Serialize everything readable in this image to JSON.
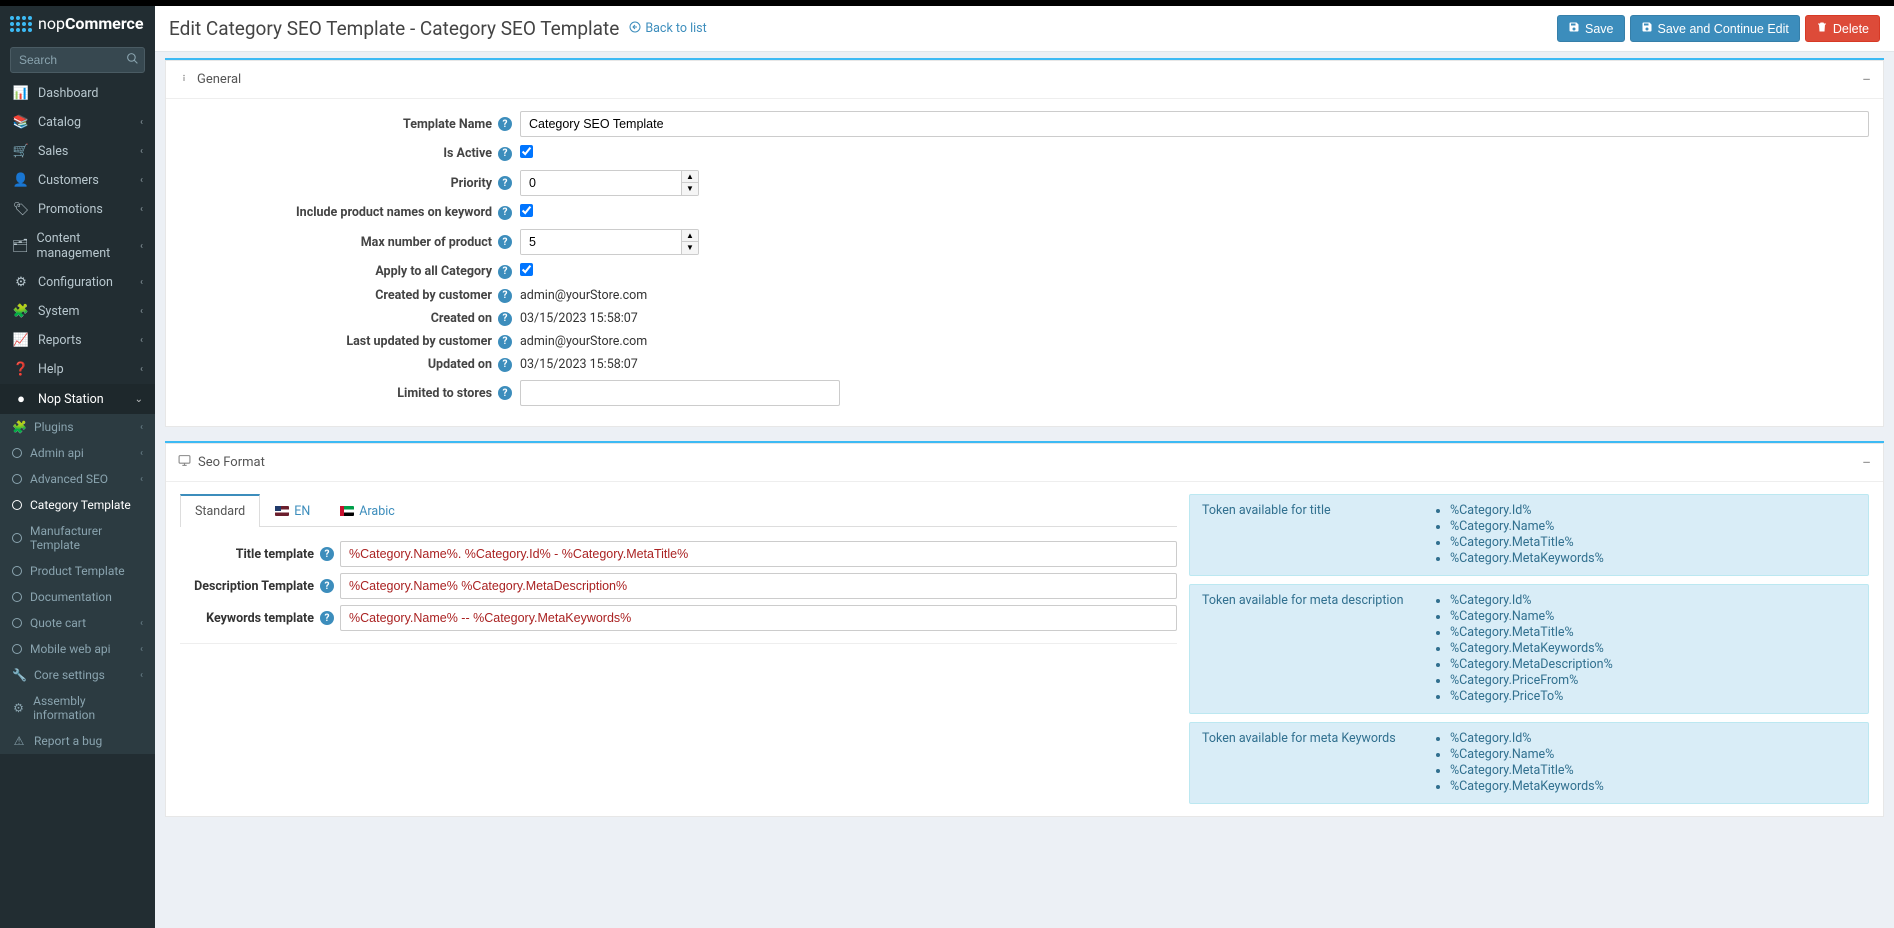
{
  "brand": {
    "nop": "nop",
    "commerce": "Commerce"
  },
  "search": {
    "placeholder": "Search"
  },
  "nav": {
    "items": [
      {
        "icon": "📊",
        "label": "Dashboard",
        "caret": false
      },
      {
        "icon": "📚",
        "label": "Catalog",
        "caret": true
      },
      {
        "icon": "🛒",
        "label": "Sales",
        "caret": true
      },
      {
        "icon": "👤",
        "label": "Customers",
        "caret": true
      },
      {
        "icon": "🏷",
        "label": "Promotions",
        "caret": true
      },
      {
        "icon": "🗂",
        "label": "Content management",
        "caret": true
      },
      {
        "icon": "⚙",
        "label": "Configuration",
        "caret": true
      },
      {
        "icon": "🧩",
        "label": "System",
        "caret": true
      },
      {
        "icon": "📈",
        "label": "Reports",
        "caret": true
      },
      {
        "icon": "❓",
        "label": "Help",
        "caret": true
      }
    ],
    "station": {
      "icon": "●",
      "label": "Nop Station"
    },
    "sub": [
      {
        "label": "Plugins",
        "icon": "🧩",
        "caret": true
      },
      {
        "label": "Admin api",
        "caret": true
      },
      {
        "label": "Advanced SEO",
        "caret": true,
        "open": true
      },
      {
        "label": "Category Template",
        "active": true,
        "indent": true
      },
      {
        "label": "Manufacturer Template",
        "indent": true
      },
      {
        "label": "Product Template",
        "indent": true
      },
      {
        "label": "Documentation",
        "indent": true
      },
      {
        "label": "Quote cart",
        "caret": true
      },
      {
        "label": "Mobile web api",
        "caret": true
      },
      {
        "label": "Core settings",
        "icon": "🔧",
        "caret": true
      },
      {
        "label": "Assembly information",
        "icon": "⚙"
      },
      {
        "label": "Report a bug",
        "icon": "⚠"
      }
    ]
  },
  "header": {
    "title": "Edit Category SEO Template - Category SEO Template",
    "back": "Back to list",
    "save": "Save",
    "saveContinue": "Save and Continue Edit",
    "delete": "Delete"
  },
  "panel_general": {
    "title": "General"
  },
  "panel_seo": {
    "title": "Seo Format"
  },
  "form": {
    "templateName": {
      "label": "Template Name",
      "value": "Category SEO Template"
    },
    "isActive": {
      "label": "Is Active",
      "checked": true
    },
    "priority": {
      "label": "Priority",
      "value": "0"
    },
    "includeProductNames": {
      "label": "Include product names on keyword",
      "checked": true
    },
    "maxProduct": {
      "label": "Max number of product",
      "value": "5"
    },
    "applyAll": {
      "label": "Apply to all Category",
      "checked": true
    },
    "createdBy": {
      "label": "Created by customer",
      "value": "admin@yourStore.com"
    },
    "createdOn": {
      "label": "Created on",
      "value": "03/15/2023 15:58:07"
    },
    "updatedBy": {
      "label": "Last updated by customer",
      "value": "admin@yourStore.com"
    },
    "updatedOn": {
      "label": "Updated on",
      "value": "03/15/2023 15:58:07"
    },
    "limitedStores": {
      "label": "Limited to stores"
    }
  },
  "tabs": {
    "standard": "Standard",
    "en": "EN",
    "arabic": "Arabic"
  },
  "seo": {
    "title": {
      "label": "Title template",
      "value": "%Category.Name%. %Category.Id% - %Category.MetaTitle%"
    },
    "desc": {
      "label": "Description Template",
      "value": "%Category.Name% %Category.MetaDescription%"
    },
    "keywords": {
      "label": "Keywords template",
      "value": "%Category.Name% -- %Category.MetaKeywords%"
    }
  },
  "tokens": {
    "title": {
      "label": "Token available for title",
      "items": [
        "%Category.Id%",
        "%Category.Name%",
        "%Category.MetaTitle%",
        "%Category.MetaKeywords%"
      ]
    },
    "desc": {
      "label": "Token available for meta description",
      "items": [
        "%Category.Id%",
        "%Category.Name%",
        "%Category.MetaTitle%",
        "%Category.MetaKeywords%",
        "%Category.MetaDescription%",
        "%Category.PriceFrom%",
        "%Category.PriceTo%"
      ]
    },
    "keywords": {
      "label": "Token available for meta Keywords",
      "items": [
        "%Category.Id%",
        "%Category.Name%",
        "%Category.MetaTitle%",
        "%Category.MetaKeywords%"
      ]
    }
  }
}
